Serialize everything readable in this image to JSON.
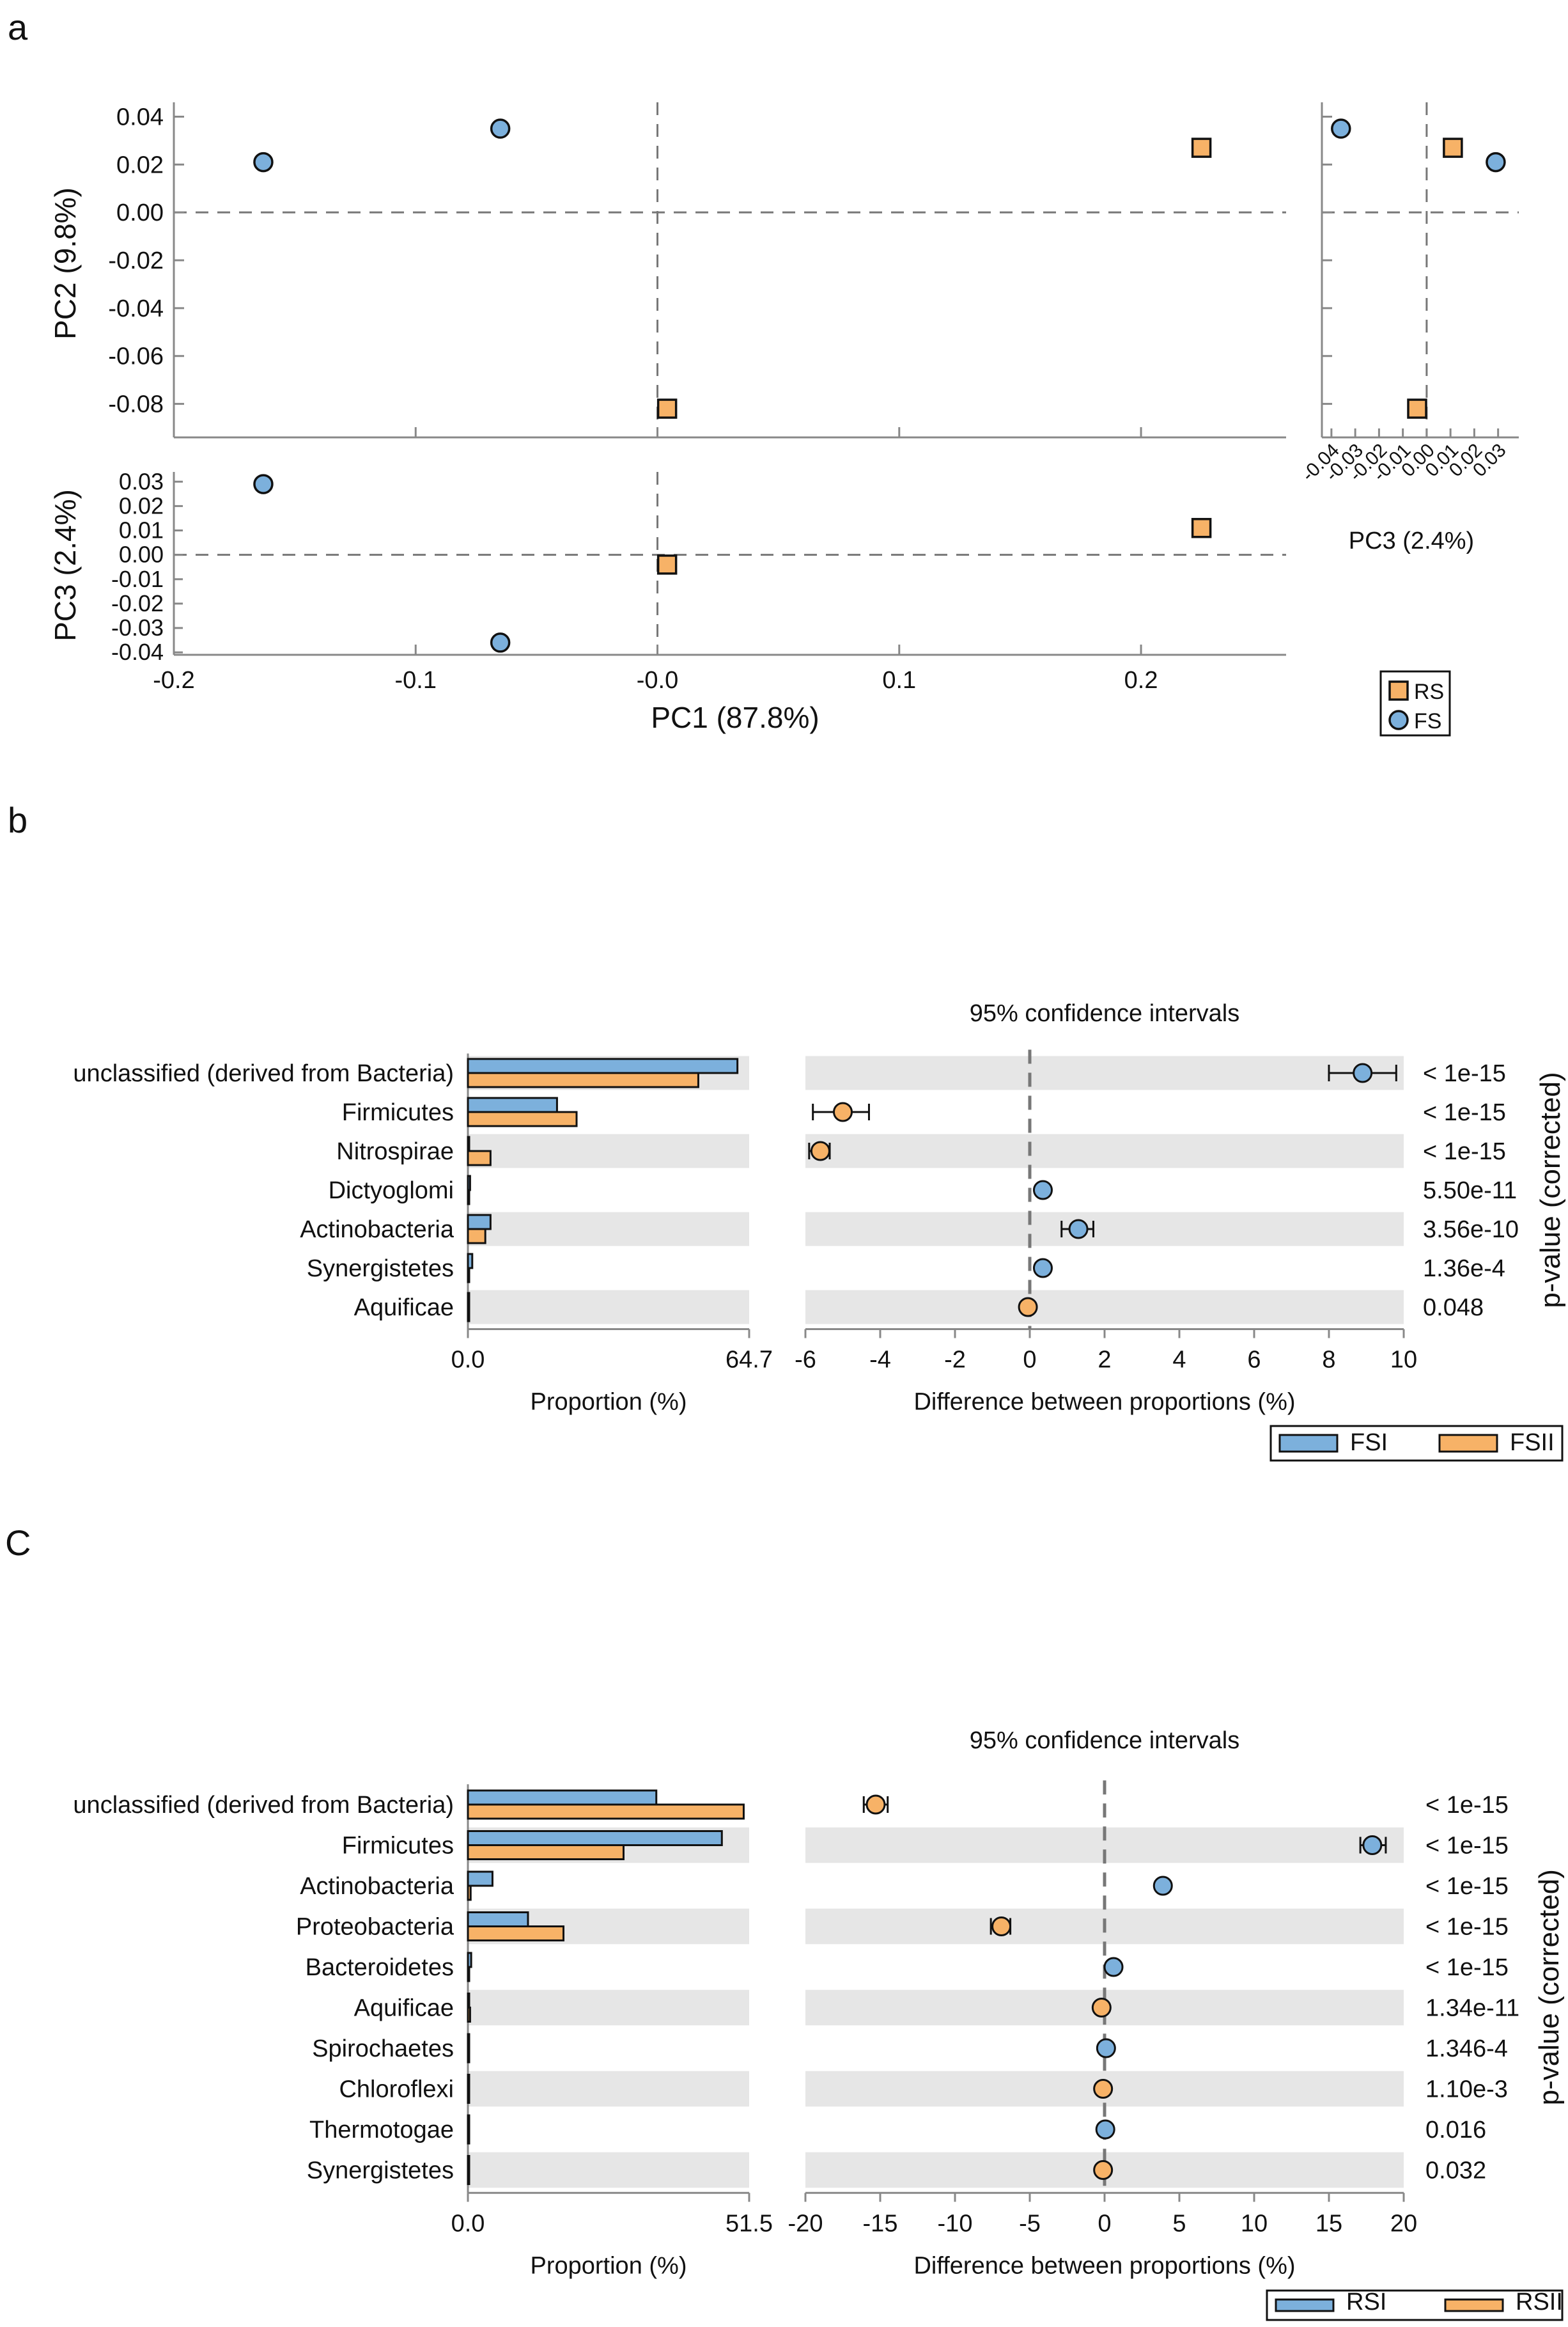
{
  "panel_labels": {
    "a": "a",
    "b": "b",
    "c": "C"
  },
  "colors": {
    "blue": "#7cb0dc",
    "orange": "#f7b267",
    "band": "#e6e6e6",
    "axis": "#888888",
    "dash": "#777777"
  },
  "chart_data": [
    {
      "id": "pca",
      "type": "scatter",
      "title": "",
      "pc1_label": "PC1 (87.8%)",
      "pc2_label": "PC2 (9.8%)",
      "pc3_label": "PC3 (2.4%)",
      "pc1_ticks": [
        -0.2,
        -0.1,
        0.0,
        0.1,
        0.2
      ],
      "pc1_tick_labels": [
        "-0.2",
        "-0.1",
        "-0.0",
        "0.1",
        "0.2"
      ],
      "pc2_ticks": [
        0.04,
        0.02,
        0.0,
        -0.02,
        -0.04,
        -0.06,
        -0.08
      ],
      "pc2_tick_labels": [
        "0.04",
        "0.02",
        "0.00",
        "-0.02",
        "-0.04",
        "-0.06",
        "-0.08"
      ],
      "pc3_ticks": [
        0.03,
        0.02,
        0.01,
        0.0,
        -0.01,
        -0.02,
        -0.03,
        -0.04
      ],
      "pc3_tick_labels": [
        "0.03",
        "0.02",
        "0.01",
        "0.00",
        "-0.01",
        "-0.02",
        "-0.03",
        "-0.04"
      ],
      "pc3_side_ticks": [
        -0.04,
        -0.03,
        -0.02,
        -0.01,
        0.0,
        0.01,
        0.02,
        0.03
      ],
      "pc3_side_tick_labels": [
        "-0.04",
        "-0.03",
        "-0.02",
        "-0.01",
        "0.00",
        "0.01",
        "0.02",
        "0.03"
      ],
      "pc1_range": [
        -0.2,
        0.26
      ],
      "pc2_range": [
        -0.094,
        0.046
      ],
      "pc3_range": [
        -0.041,
        0.034
      ],
      "pc3_side_range": [
        -0.044,
        0.036
      ],
      "legend": [
        {
          "label": "RS",
          "marker": "square",
          "color": "#f7b267"
        },
        {
          "label": "FS",
          "marker": "circle",
          "color": "#7cb0dc"
        }
      ],
      "points": [
        {
          "group": "FS",
          "pc1": -0.163,
          "pc2": 0.021,
          "pc3": 0.029
        },
        {
          "group": "FS",
          "pc1": -0.065,
          "pc2": 0.035,
          "pc3": -0.036
        },
        {
          "group": "RS",
          "pc1": 0.225,
          "pc2": 0.027,
          "pc3": 0.011
        },
        {
          "group": "RS",
          "pc1": 0.004,
          "pc2": -0.082,
          "pc3": -0.004
        }
      ]
    },
    {
      "id": "fs",
      "type": "bar",
      "ci_title": "95% confidence intervals",
      "proportion_label": "Proportion (%)",
      "diff_label": "Difference between proportions (%)",
      "pvalue_label": "p-value (corrected)",
      "prop_max": 64.7,
      "prop_tick_labels": [
        "0.0",
        "64.7"
      ],
      "diff_range": [
        -6,
        10
      ],
      "diff_ticks": [
        -6,
        -4,
        -2,
        0,
        2,
        4,
        6,
        8,
        10
      ],
      "diff_tick_labels": [
        "-6",
        "-4",
        "-2",
        "0",
        "2",
        "4",
        "6",
        "8",
        "10"
      ],
      "legend": [
        {
          "label": "FSI",
          "color": "#7cb0dc"
        },
        {
          "label": "FSII",
          "color": "#f7b267"
        }
      ],
      "series_names": [
        "FSI",
        "FSII"
      ],
      "categories": [
        "unclassified (derived from Bacteria)",
        "Firmicutes",
        "Nitrospirae",
        "Dictyoglomi",
        "Actinobacteria",
        "Synergistetes",
        "Aquificae"
      ],
      "prop1": [
        62.0,
        20.5,
        0.05,
        0.5,
        5.2,
        1.0,
        0.05
      ],
      "prop2": [
        53.0,
        25.0,
        5.2,
        0.05,
        4.0,
        0.2,
        0.02
      ],
      "diff": [
        8.9,
        -5.0,
        -5.6,
        0.35,
        1.3,
        0.35,
        -0.05
      ],
      "ci_low": [
        8.0,
        -5.8,
        -5.9,
        0.3,
        0.85,
        0.3,
        -0.07
      ],
      "ci_high": [
        9.8,
        -4.3,
        -5.35,
        0.4,
        1.7,
        0.4,
        -0.03
      ],
      "favors": [
        "FSI",
        "FSII",
        "FSII",
        "FSI",
        "FSI",
        "FSI",
        "FSII"
      ],
      "pvalues": [
        "< 1e-15",
        "< 1e-15",
        "< 1e-15",
        "5.50e-11",
        "3.56e-10",
        "1.36e-4",
        "0.048"
      ]
    },
    {
      "id": "rs",
      "type": "bar",
      "ci_title": "95% confidence intervals",
      "proportion_label": "Proportion (%)",
      "diff_label": "Difference between proportions (%)",
      "pvalue_label": "p-value (corrected)",
      "prop_max": 51.5,
      "prop_tick_labels": [
        "0.0",
        "51.5"
      ],
      "diff_range": [
        -20,
        20
      ],
      "diff_ticks": [
        -20,
        -15,
        -10,
        -5,
        0,
        5,
        10,
        15,
        20
      ],
      "diff_tick_labels": [
        "-20",
        "-15",
        "-10",
        "-5",
        "0",
        "5",
        "10",
        "15",
        "20"
      ],
      "legend": [
        {
          "label": "RSI",
          "color": "#7cb0dc"
        },
        {
          "label": "RSII",
          "color": "#f7b267"
        }
      ],
      "series_names": [
        "RSI",
        "RSII"
      ],
      "categories": [
        "unclassified (derived from Bacteria)",
        "Firmicutes",
        "Actinobacteria",
        "Proteobacteria",
        "Bacteroidetes",
        "Aquificae",
        "Spirochaetes",
        "Chloroflexi",
        "Thermotogae",
        "Synergistetes"
      ],
      "prop1": [
        34.5,
        46.5,
        4.5,
        11.0,
        0.6,
        0.2,
        0.2,
        0.1,
        0.1,
        0.1
      ],
      "prop2": [
        50.5,
        28.5,
        0.5,
        17.5,
        0.1,
        0.4,
        0.1,
        0.2,
        0.05,
        0.2
      ],
      "diff": [
        -15.3,
        17.9,
        3.9,
        -6.9,
        0.6,
        -0.2,
        0.1,
        -0.1,
        0.05,
        -0.1
      ],
      "ci_low": [
        -16.1,
        17.1,
        3.7,
        -7.6,
        0.5,
        -0.25,
        0.05,
        -0.15,
        0.02,
        -0.15
      ],
      "ci_high": [
        -14.5,
        18.8,
        4.1,
        -6.3,
        0.7,
        -0.15,
        0.15,
        -0.05,
        0.08,
        -0.05
      ],
      "favors": [
        "RSII",
        "RSI",
        "RSI",
        "RSII",
        "RSI",
        "RSII",
        "RSI",
        "RSII",
        "RSI",
        "RSII"
      ],
      "pvalues": [
        "< 1e-15",
        "< 1e-15",
        "< 1e-15",
        "< 1e-15",
        "< 1e-15",
        "1.34e-11",
        "1.346-4",
        "1.10e-3",
        "0.016",
        "0.032"
      ]
    }
  ]
}
